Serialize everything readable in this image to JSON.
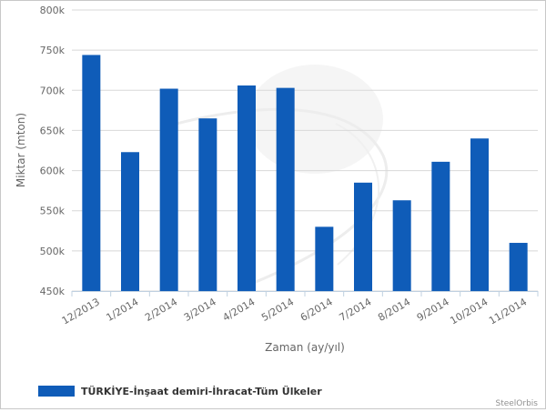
{
  "chart_data": {
    "type": "bar",
    "categories": [
      "12/2013",
      "1/2014",
      "2/2014",
      "3/2014",
      "4/2014",
      "5/2014",
      "6/2014",
      "7/2014",
      "8/2014",
      "9/2014",
      "10/2014",
      "11/2014"
    ],
    "series": [
      {
        "name": "TÜRKİYE-İnşaat demiri-İhracat-Tüm Ülkeler",
        "values": [
          744,
          623,
          702,
          665,
          706,
          703,
          530,
          585,
          563,
          611,
          640,
          510
        ],
        "color": "#0f5cb8"
      }
    ],
    "ylim": [
      450,
      800
    ],
    "yticks": [
      450,
      500,
      550,
      600,
      650,
      700,
      750,
      800
    ],
    "ytick_labels": [
      "450k",
      "500k",
      "550k",
      "600k",
      "650k",
      "700k",
      "750k",
      "800k"
    ],
    "xlabel": "Zaman (ay/yıl)",
    "ylabel": "Miktar (mton)",
    "grid": "horizontal",
    "legend": "bottom-left"
  },
  "credit": "SteelOrbis"
}
